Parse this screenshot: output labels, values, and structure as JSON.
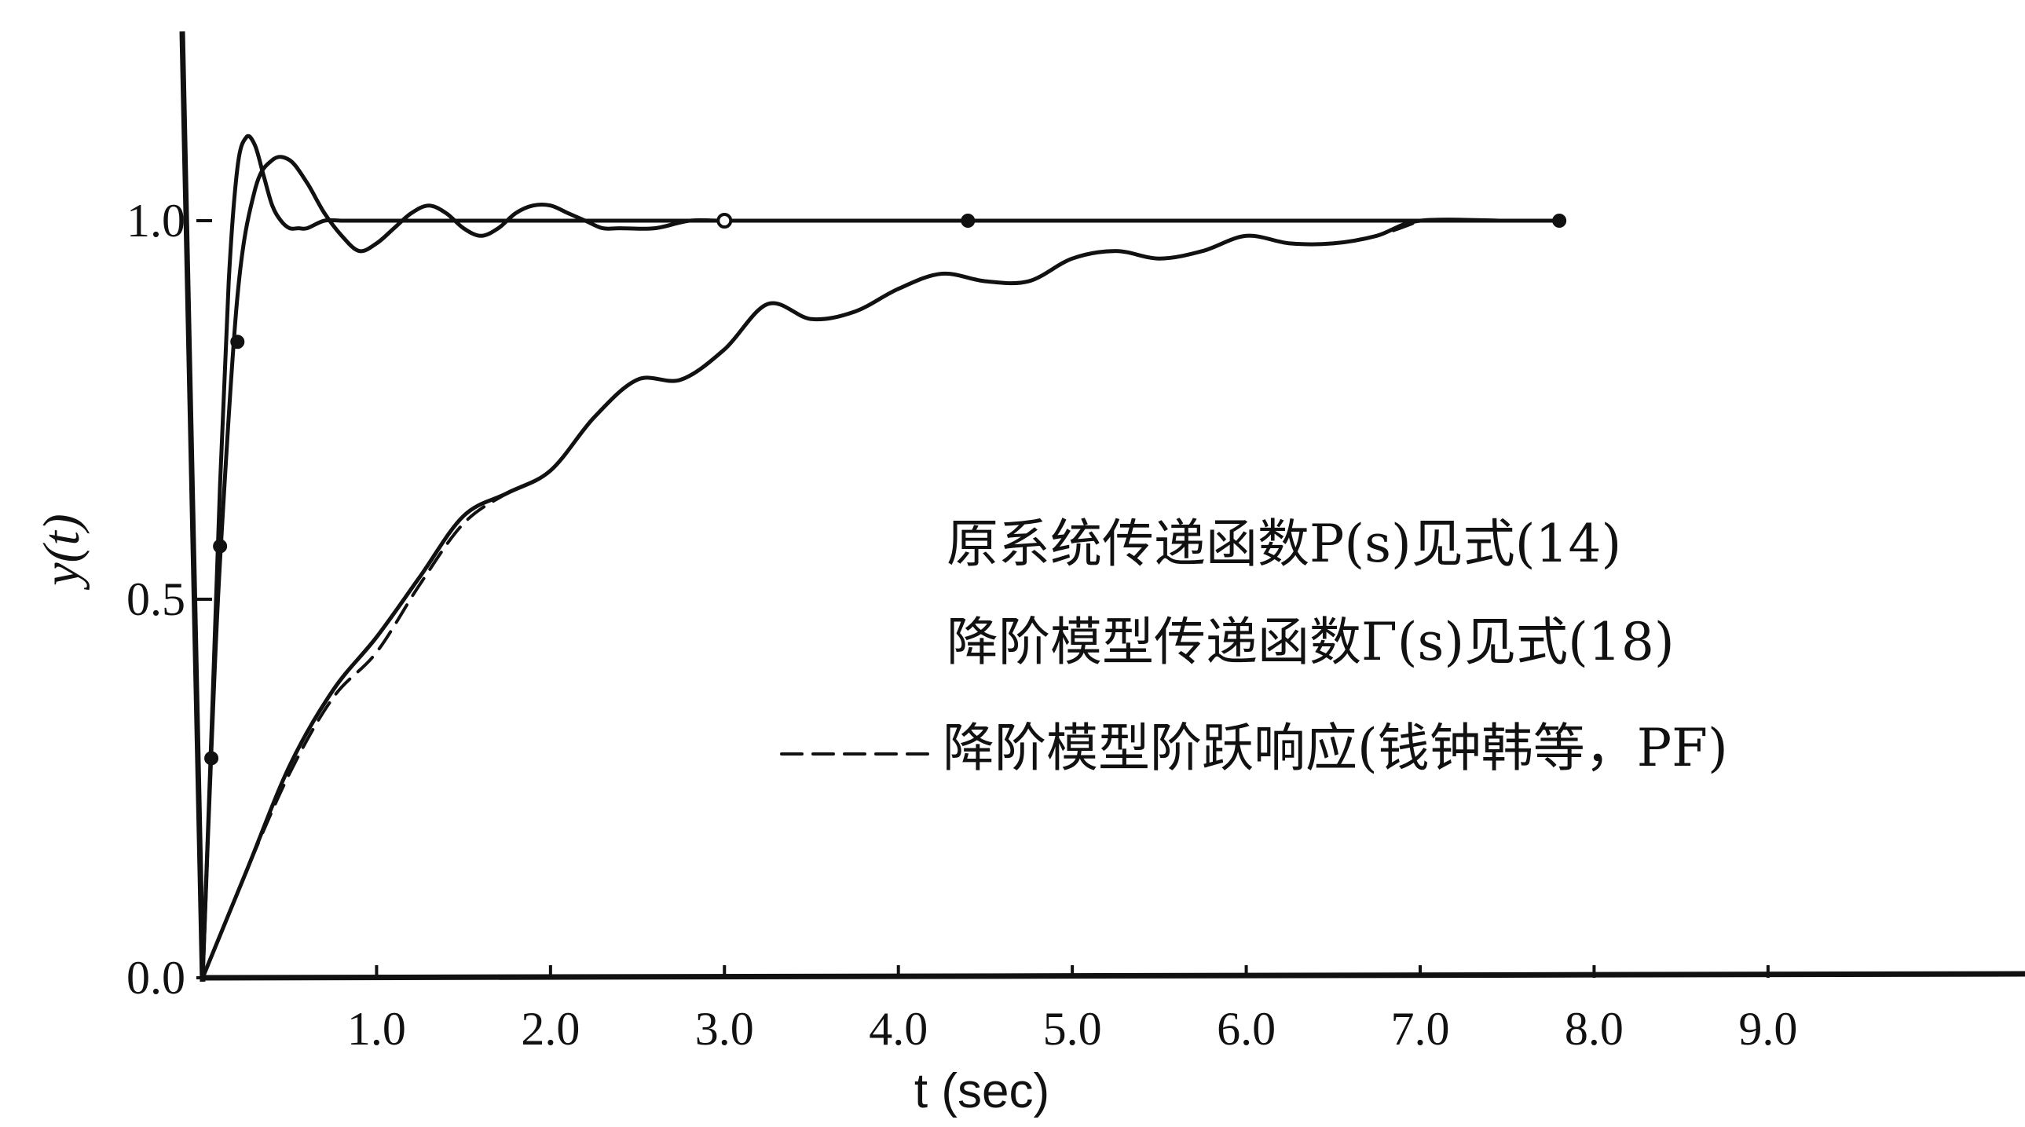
{
  "chart_data": {
    "type": "line",
    "title": "",
    "xlabel": "t (sec)",
    "ylabel": "y(t)",
    "xlim": [
      0,
      9.8
    ],
    "ylim": [
      0,
      1.25
    ],
    "x_ticks": [
      "1.0",
      "2.0",
      "3.0",
      "4.0",
      "5.0",
      "6.0",
      "7.0",
      "8.0",
      "9.0"
    ],
    "y_ticks": [
      "0.0",
      "0.5",
      "1.0"
    ],
    "legend": {
      "placement": "right-middle",
      "entries": [
        "原系统传递函数P(s)见式(14)",
        "降阶模型传递函数Γ(s)见式(18)",
        "降阶模型阶跃响应(钱钟韩等，PF)"
      ]
    },
    "series": [
      {
        "style": "solid",
        "x": [
          0,
          0.05,
          0.1,
          0.15,
          0.2,
          0.25,
          0.3,
          0.35,
          0.4,
          0.45,
          0.5,
          0.55,
          0.6,
          0.7,
          0.8,
          0.9,
          1.0,
          1.1,
          1.2,
          1.3,
          1.4,
          1.5,
          1.6,
          1.7,
          1.8,
          1.9,
          2.0,
          2.1,
          2.2,
          2.4,
          2.6,
          3.0,
          4.0,
          5.0,
          6.0,
          7.0,
          7.8
        ],
        "y": [
          0,
          0.32,
          0.65,
          0.92,
          1.07,
          1.11,
          1.1,
          1.06,
          1.02,
          1.0,
          0.99,
          0.99,
          0.99,
          1.0,
          1.0,
          1.0,
          1.0,
          1.0,
          1.0,
          1.0,
          1.0,
          1.0,
          1.0,
          1.0,
          1.0,
          1.0,
          1.0,
          1.0,
          1.0,
          1.0,
          1.0,
          1.0,
          1.0,
          1.0,
          1.0,
          1.0,
          1.0
        ],
        "markers": [
          {
            "x": 0.05,
            "y": 0.29,
            "fill": "filled"
          },
          {
            "x": 0.1,
            "y": 0.57,
            "fill": "filled"
          },
          {
            "x": 0.2,
            "y": 0.84,
            "fill": "filled"
          },
          {
            "x": 3.0,
            "y": 1.0,
            "fill": "open"
          },
          {
            "x": 4.4,
            "y": 1.0,
            "fill": "filled"
          },
          {
            "x": 7.8,
            "y": 1.0,
            "fill": "filled"
          }
        ]
      },
      {
        "style": "solid",
        "x": [
          0,
          0.05,
          0.1,
          0.2,
          0.3,
          0.4,
          0.5,
          0.6,
          0.7,
          0.8,
          0.9,
          1.0,
          1.1,
          1.2,
          1.3,
          1.4,
          1.5,
          1.6,
          1.7,
          1.8,
          1.9,
          2.0,
          2.1,
          2.2,
          2.3,
          2.4,
          2.6,
          2.8,
          3.0,
          3.5,
          4.0,
          5.0,
          6.0,
          7.0,
          7.8
        ],
        "y": [
          0,
          0.3,
          0.55,
          0.9,
          1.04,
          1.08,
          1.08,
          1.05,
          1.01,
          0.98,
          0.96,
          0.97,
          0.99,
          1.01,
          1.02,
          1.01,
          0.99,
          0.98,
          0.99,
          1.01,
          1.02,
          1.02,
          1.01,
          1.0,
          0.99,
          0.99,
          0.99,
          1.0,
          1.0,
          1.0,
          1.0,
          1.0,
          1.0,
          1.0,
          1.0
        ]
      },
      {
        "style": "solid",
        "x": [
          0,
          0.25,
          0.5,
          0.75,
          1.0,
          1.25,
          1.5,
          1.75,
          2.0,
          2.25,
          2.5,
          2.75,
          3.0,
          3.25,
          3.5,
          3.75,
          4.0,
          4.25,
          4.5,
          4.75,
          5.0,
          5.25,
          5.5,
          5.75,
          6.0,
          6.25,
          6.5,
          6.75,
          7.0,
          7.5,
          7.8
        ],
        "y": [
          0,
          0.14,
          0.28,
          0.38,
          0.45,
          0.53,
          0.61,
          0.64,
          0.67,
          0.74,
          0.79,
          0.79,
          0.83,
          0.89,
          0.87,
          0.88,
          0.91,
          0.93,
          0.92,
          0.92,
          0.95,
          0.96,
          0.95,
          0.96,
          0.98,
          0.97,
          0.97,
          0.98,
          1.0,
          1.0,
          1.0
        ]
      },
      {
        "style": "dashed",
        "x": [
          0,
          0.25,
          0.5,
          0.75,
          1.0,
          1.25,
          1.5,
          1.75,
          2.0,
          2.25,
          2.5,
          2.75,
          3.0,
          3.25,
          3.5,
          3.75,
          4.0,
          4.25,
          4.5,
          4.75,
          5.0,
          5.25,
          5.5,
          5.75,
          6.0,
          6.25,
          6.5,
          6.75,
          7.0
        ],
        "y": [
          0,
          0.14,
          0.27,
          0.37,
          0.43,
          0.52,
          0.6,
          0.64,
          0.67,
          0.74,
          0.79,
          0.79,
          0.83,
          0.89,
          0.87,
          0.88,
          0.91,
          0.93,
          0.92,
          0.92,
          0.95,
          0.96,
          0.95,
          0.96,
          0.98,
          0.97,
          0.97,
          0.98,
          1.0
        ]
      }
    ]
  }
}
